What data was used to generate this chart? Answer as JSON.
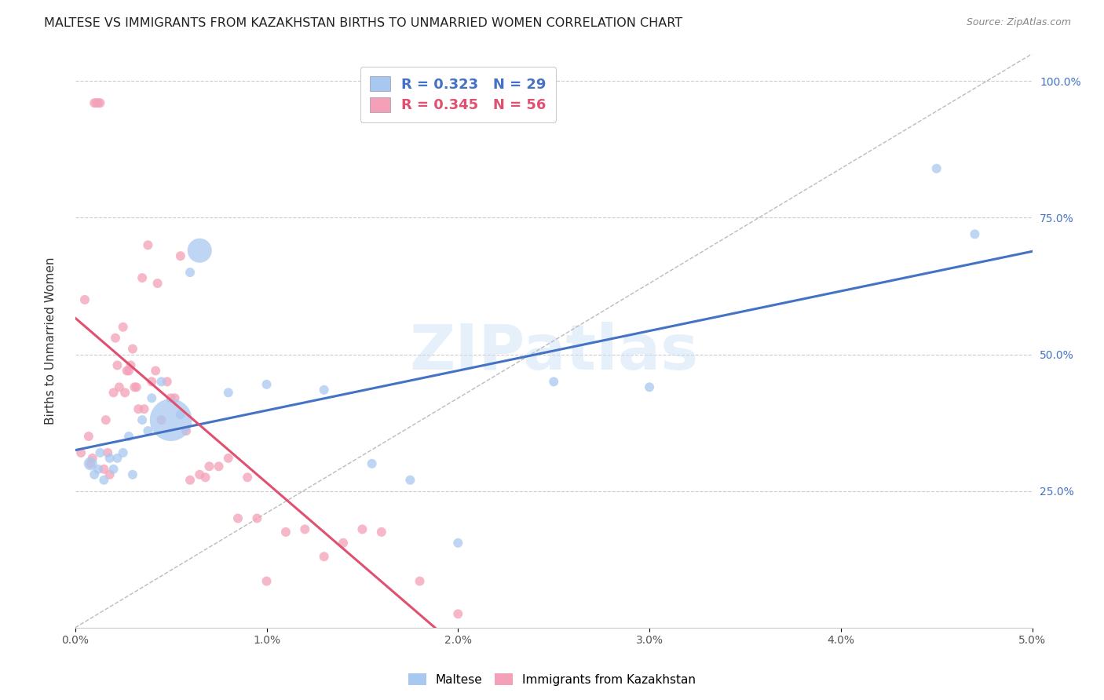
{
  "title": "MALTESE VS IMMIGRANTS FROM KAZAKHSTAN BIRTHS TO UNMARRIED WOMEN CORRELATION CHART",
  "source": "Source: ZipAtlas.com",
  "ylabel": "Births to Unmarried Women",
  "watermark": "ZIPatlas",
  "legend1_label": "Maltese",
  "legend2_label": "Immigrants from Kazakhstan",
  "R_blue": 0.323,
  "N_blue": 29,
  "R_pink": 0.345,
  "N_pink": 56,
  "xmin": 0.0,
  "xmax": 0.05,
  "ymin": 0.0,
  "ymax": 1.05,
  "yticks": [
    0.0,
    0.25,
    0.5,
    0.75,
    1.0
  ],
  "ytick_labels": [
    "",
    "25.0%",
    "50.0%",
    "75.0%",
    "100.0%"
  ],
  "blue_color": "#A8C8F0",
  "pink_color": "#F4A0B8",
  "blue_line_color": "#4472C4",
  "pink_line_color": "#E05070",
  "gray_line_color": "#BBBBBB",
  "blue_scatter_x": [
    0.0008,
    0.001,
    0.0012,
    0.0013,
    0.0015,
    0.0018,
    0.002,
    0.0022,
    0.0025,
    0.0028,
    0.003,
    0.0035,
    0.0038,
    0.004,
    0.0045,
    0.005,
    0.0055,
    0.006,
    0.0065,
    0.008,
    0.01,
    0.013,
    0.0155,
    0.0175,
    0.02,
    0.025,
    0.03,
    0.045,
    0.047
  ],
  "blue_scatter_y": [
    0.3,
    0.28,
    0.29,
    0.32,
    0.27,
    0.31,
    0.29,
    0.31,
    0.32,
    0.35,
    0.28,
    0.38,
    0.36,
    0.42,
    0.45,
    0.38,
    0.39,
    0.65,
    0.69,
    0.43,
    0.445,
    0.435,
    0.3,
    0.27,
    0.155,
    0.45,
    0.44,
    0.84,
    0.72
  ],
  "blue_scatter_sizes": [
    60,
    30,
    30,
    30,
    30,
    30,
    30,
    30,
    30,
    30,
    30,
    30,
    30,
    30,
    30,
    600,
    30,
    30,
    200,
    30,
    30,
    30,
    30,
    30,
    30,
    30,
    30,
    30,
    30
  ],
  "pink_scatter_x": [
    0.0003,
    0.0005,
    0.0007,
    0.0008,
    0.0009,
    0.001,
    0.0011,
    0.0012,
    0.0013,
    0.0015,
    0.0016,
    0.0017,
    0.0018,
    0.002,
    0.0021,
    0.0022,
    0.0023,
    0.0025,
    0.0026,
    0.0027,
    0.0028,
    0.0029,
    0.003,
    0.0031,
    0.0032,
    0.0033,
    0.0035,
    0.0036,
    0.0038,
    0.004,
    0.0042,
    0.0043,
    0.0045,
    0.0048,
    0.005,
    0.0052,
    0.0055,
    0.0058,
    0.006,
    0.0065,
    0.0068,
    0.007,
    0.0075,
    0.008,
    0.0085,
    0.009,
    0.0095,
    0.01,
    0.011,
    0.012,
    0.013,
    0.014,
    0.015,
    0.016,
    0.018,
    0.02
  ],
  "pink_scatter_y": [
    0.32,
    0.6,
    0.35,
    0.3,
    0.31,
    0.96,
    0.96,
    0.96,
    0.96,
    0.29,
    0.38,
    0.32,
    0.28,
    0.43,
    0.53,
    0.48,
    0.44,
    0.55,
    0.43,
    0.47,
    0.47,
    0.48,
    0.51,
    0.44,
    0.44,
    0.4,
    0.64,
    0.4,
    0.7,
    0.45,
    0.47,
    0.63,
    0.38,
    0.45,
    0.42,
    0.42,
    0.68,
    0.36,
    0.27,
    0.28,
    0.275,
    0.295,
    0.295,
    0.31,
    0.2,
    0.275,
    0.2,
    0.085,
    0.175,
    0.18,
    0.13,
    0.155,
    0.18,
    0.175,
    0.085,
    0.025
  ],
  "pink_scatter_sizes": [
    30,
    30,
    30,
    30,
    30,
    30,
    30,
    30,
    30,
    30,
    30,
    30,
    30,
    30,
    30,
    30,
    30,
    30,
    30,
    30,
    30,
    30,
    30,
    30,
    30,
    30,
    30,
    30,
    30,
    30,
    30,
    30,
    30,
    30,
    30,
    30,
    30,
    30,
    30,
    30,
    30,
    30,
    30,
    30,
    30,
    30,
    30,
    30,
    30,
    30,
    30,
    30,
    30,
    30,
    30,
    30
  ]
}
